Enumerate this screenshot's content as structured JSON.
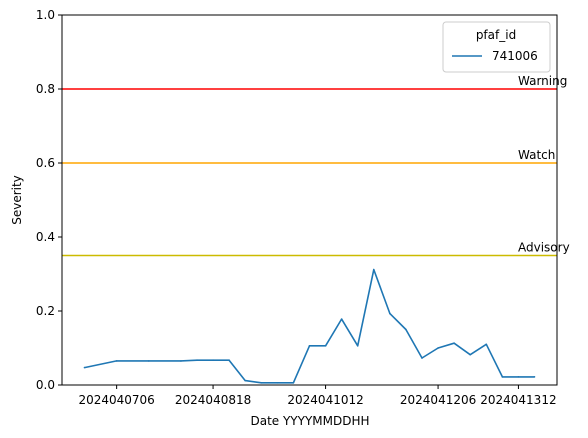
{
  "chart_data": {
    "type": "line",
    "xlabel": "Date YYYYMMDDHH",
    "ylabel": "Severity",
    "ylim": [
      0,
      1
    ],
    "grid": false,
    "x_ticks": [
      "2024040706",
      "2024040818",
      "2024041012",
      "2024041206",
      "2024041312"
    ],
    "y_ticks": [
      "0.0",
      "0.2",
      "0.4",
      "0.6",
      "0.8",
      "1.0"
    ],
    "legend": {
      "title": "pfaf_id",
      "placement": "top-right"
    },
    "series": [
      {
        "name": "741006",
        "color": "#1f77b4",
        "points": [
          {
            "x": "2024040618",
            "y": 0.047
          },
          {
            "x": "2024040706",
            "y": 0.065
          },
          {
            "x": "2024040718",
            "y": 0.065
          },
          {
            "x": "2024040806",
            "y": 0.065
          },
          {
            "x": "2024040812",
            "y": 0.067
          },
          {
            "x": "2024040818",
            "y": 0.067
          },
          {
            "x": "2024040900",
            "y": 0.067
          },
          {
            "x": "2024040906",
            "y": 0.012
          },
          {
            "x": "2024040912",
            "y": 0.006
          },
          {
            "x": "2024040918",
            "y": 0.006
          },
          {
            "x": "2024041000",
            "y": 0.006
          },
          {
            "x": "2024041006",
            "y": 0.106
          },
          {
            "x": "2024041012",
            "y": 0.106
          },
          {
            "x": "2024041018",
            "y": 0.178
          },
          {
            "x": "2024041100",
            "y": 0.106
          },
          {
            "x": "2024041106",
            "y": 0.312
          },
          {
            "x": "2024041112",
            "y": 0.193
          },
          {
            "x": "2024041118",
            "y": 0.15
          },
          {
            "x": "2024041200",
            "y": 0.073
          },
          {
            "x": "2024041206",
            "y": 0.1
          },
          {
            "x": "2024041212",
            "y": 0.113
          },
          {
            "x": "2024041218",
            "y": 0.082
          },
          {
            "x": "2024041300",
            "y": 0.11
          },
          {
            "x": "2024041306",
            "y": 0.022
          },
          {
            "x": "2024041312",
            "y": 0.022
          },
          {
            "x": "2024041318",
            "y": 0.022
          }
        ]
      }
    ],
    "thresholds": [
      {
        "label": "Warning",
        "value": 0.8,
        "color": "#ff0000"
      },
      {
        "label": "Watch",
        "value": 0.6,
        "color": "#ffa500"
      },
      {
        "label": "Advisory",
        "value": 0.35,
        "color": "#ccbb00"
      }
    ]
  }
}
